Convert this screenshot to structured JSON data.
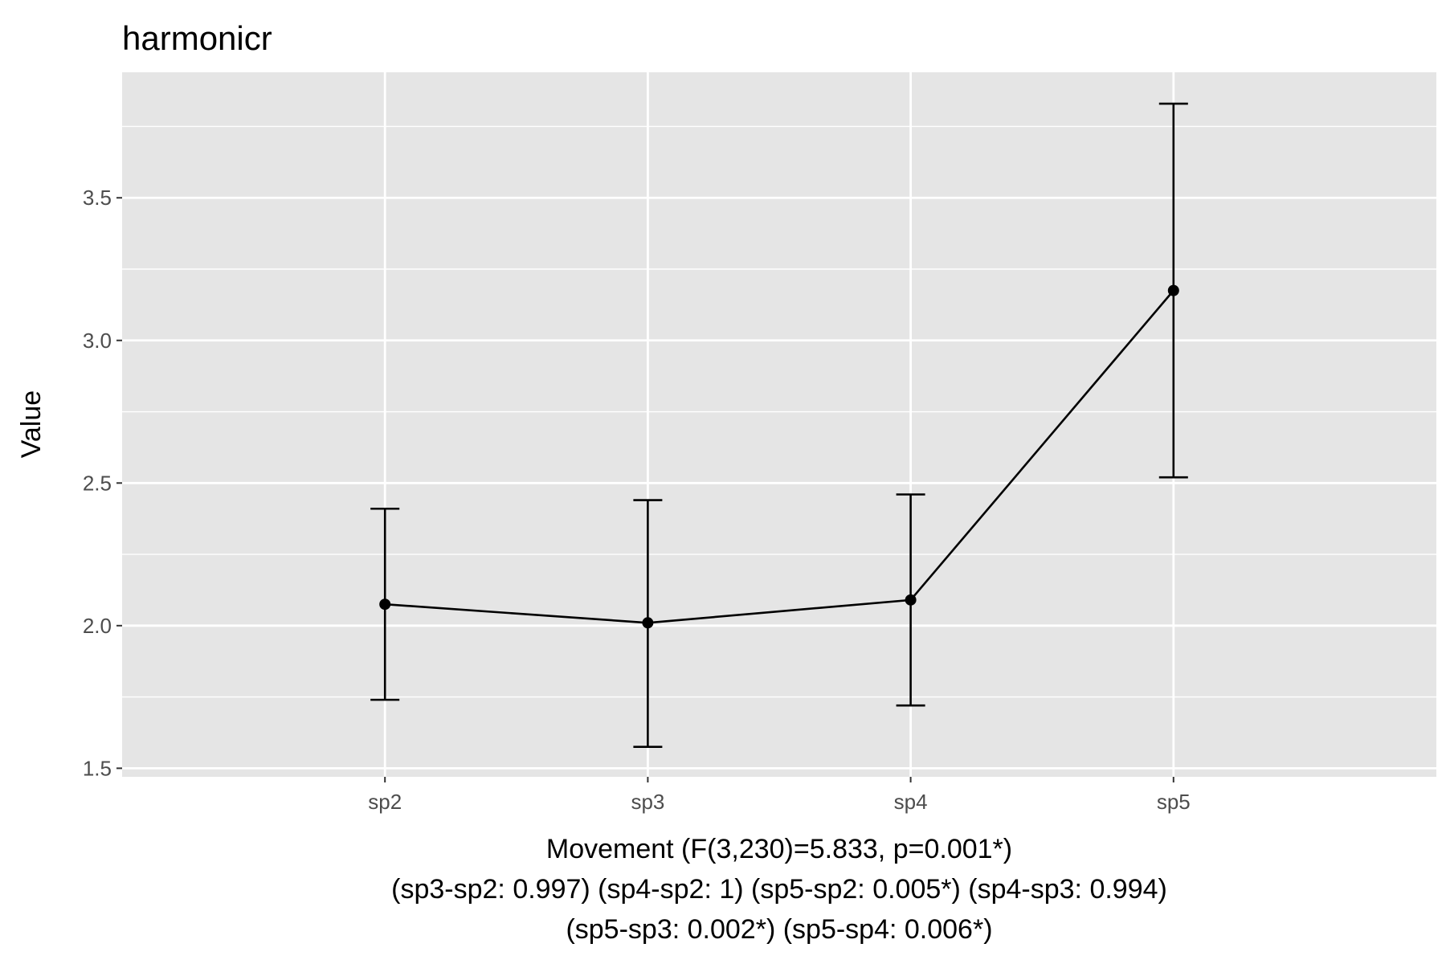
{
  "chart_data": {
    "type": "line",
    "title": "harmonicr",
    "ylabel": "Value",
    "xlabel_lines": [
      "Movement (F(3,230)=5.833, p=0.001*)",
      "(sp3-sp2: 0.997) (sp4-sp2: 1) (sp5-sp2: 0.005*) (sp4-sp3: 0.994)",
      "(sp5-sp3: 0.002*) (sp5-sp4: 0.006*)"
    ],
    "categories": [
      "sp2",
      "sp3",
      "sp4",
      "sp5"
    ],
    "values": [
      2.075,
      2.01,
      2.09,
      3.175
    ],
    "error_lower": [
      1.74,
      1.575,
      1.72,
      2.52
    ],
    "error_upper": [
      2.41,
      2.44,
      2.46,
      3.83
    ],
    "ylim": [
      1.47,
      3.94
    ],
    "yticks": [
      1.5,
      2.0,
      2.5,
      3.0,
      3.5
    ],
    "ytick_labels": [
      "1.5",
      "2.0",
      "2.5",
      "3.0",
      "3.5"
    ],
    "grid": true,
    "colors": {
      "panel_background": "#e5e5e5",
      "grid": "#ffffff",
      "line": "#000000",
      "tick_label": "#4d4d4d"
    }
  }
}
